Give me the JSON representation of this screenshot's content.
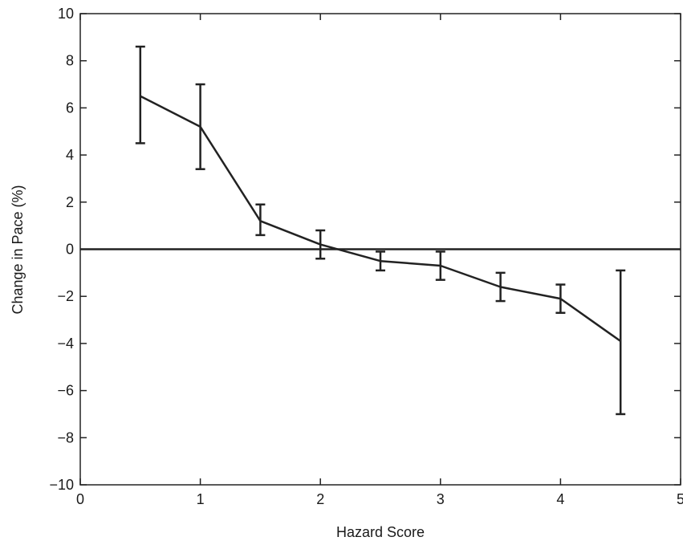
{
  "chart_data": {
    "type": "line",
    "title": "",
    "xlabel": "Hazard Score",
    "ylabel": "Change in Pace (%)",
    "xlim": [
      0,
      5
    ],
    "ylim": [
      -10,
      10
    ],
    "x_ticks": [
      "0",
      "1",
      "2",
      "3",
      "4",
      "5"
    ],
    "y_ticks": [
      "10",
      "8",
      "6",
      "4",
      "2",
      "0",
      "−2",
      "−4",
      "−6",
      "−8",
      "−10"
    ],
    "grid": false,
    "reference_line_y": 0,
    "series": [
      {
        "x": [
          0.5,
          1.0,
          1.5,
          2.0,
          2.5,
          3.0,
          3.5,
          4.0,
          4.5
        ],
        "values": [
          6.5,
          5.2,
          1.2,
          0.2,
          -0.5,
          -0.7,
          -1.6,
          -2.1,
          -3.9
        ],
        "error_low": [
          4.5,
          3.4,
          0.6,
          -0.4,
          -0.9,
          -1.3,
          -2.2,
          -2.7,
          -7.0
        ],
        "error_high": [
          8.6,
          7.0,
          1.9,
          0.8,
          -0.1,
          -0.1,
          -1.0,
          -1.5,
          -0.9
        ],
        "color": "#222222"
      }
    ]
  }
}
